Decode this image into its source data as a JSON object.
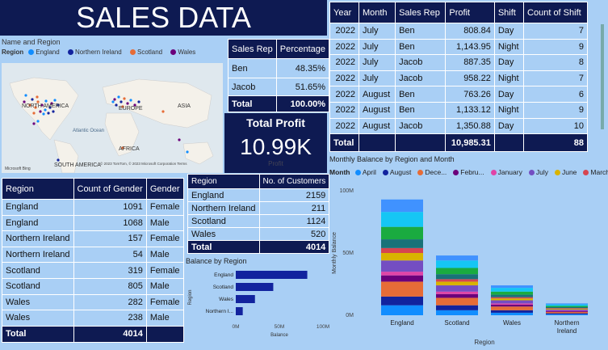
{
  "title": "SALES DATA",
  "map": {
    "caption": "Name and Region",
    "legend_label": "Region",
    "legend": [
      {
        "name": "England",
        "color": "#118dff"
      },
      {
        "name": "Northern Ireland",
        "color": "#12239e"
      },
      {
        "name": "Scotland",
        "color": "#e66c37"
      },
      {
        "name": "Wales",
        "color": "#6b007b"
      }
    ],
    "labels": {
      "north_america": "NORTH AMERICA",
      "europe": "EUROPE",
      "asia": "ASIA",
      "africa": "AFRICA",
      "south_america": "SOUTH AMERICA",
      "australia": "AUSTRALIA",
      "atlantic": "Atlantic Ocean"
    },
    "brand": "Microsoft Bing",
    "copyright": "© 2023 TomTom, © 2023 Microsoft Corporation Terms"
  },
  "rep_table": {
    "headers": [
      "Sales Rep",
      "Percentage"
    ],
    "rows": [
      [
        "Ben",
        "48.35%"
      ],
      [
        "Jacob",
        "51.65%"
      ]
    ],
    "total": [
      "Total",
      "100.00%"
    ]
  },
  "kpi": {
    "title": "Total Profit",
    "value": "10.99K",
    "label": "Profit"
  },
  "shift_table": {
    "headers": [
      "Year",
      "Month",
      "Sales Rep",
      "Profit",
      "Shift",
      "Count of Shift"
    ],
    "rows": [
      [
        "2022",
        "July",
        "Ben",
        "808.84",
        "Day",
        "7"
      ],
      [
        "2022",
        "July",
        "Ben",
        "1,143.95",
        "Night",
        "9"
      ],
      [
        "2022",
        "July",
        "Jacob",
        "887.35",
        "Day",
        "8"
      ],
      [
        "2022",
        "July",
        "Jacob",
        "958.22",
        "Night",
        "7"
      ],
      [
        "2022",
        "August",
        "Ben",
        "763.26",
        "Day",
        "6"
      ],
      [
        "2022",
        "August",
        "Ben",
        "1,133.12",
        "Night",
        "9"
      ],
      [
        "2022",
        "August",
        "Jacob",
        "1,350.88",
        "Day",
        "10"
      ]
    ],
    "total": [
      "Total",
      "",
      "",
      "10,985.31",
      "",
      "88"
    ]
  },
  "gender_table": {
    "headers": [
      "Region",
      "Count of Gender",
      "Gender"
    ],
    "rows": [
      [
        "England",
        "1091",
        "Female"
      ],
      [
        "England",
        "1068",
        "Male"
      ],
      [
        "Northern Ireland",
        "157",
        "Female"
      ],
      [
        "Northern Ireland",
        "54",
        "Male"
      ],
      [
        "Scotland",
        "319",
        "Female"
      ],
      [
        "Scotland",
        "805",
        "Male"
      ],
      [
        "Wales",
        "282",
        "Female"
      ],
      [
        "Wales",
        "238",
        "Male"
      ]
    ],
    "total": [
      "Total",
      "4014",
      ""
    ]
  },
  "customers_table": {
    "headers": [
      "Region",
      "No. of Customers"
    ],
    "rows": [
      [
        "England",
        "2159"
      ],
      [
        "Northern Ireland",
        "211"
      ],
      [
        "Scotland",
        "1124"
      ],
      [
        "Wales",
        "520"
      ]
    ],
    "total": [
      "Total",
      "4014"
    ]
  },
  "chart_data": [
    {
      "type": "bar",
      "orientation": "horizontal",
      "title": "Balance by Region",
      "xlabel": "Balance",
      "ylabel": "Region",
      "categories": [
        "England",
        "Scotland",
        "Wales",
        "Northern I..."
      ],
      "values": [
        82,
        43,
        22,
        8
      ],
      "xlim": [
        0,
        100
      ],
      "xticks": [
        "0M",
        "50M",
        "100M"
      ],
      "color": "#12239e"
    },
    {
      "type": "bar",
      "stacked": true,
      "title": "Monthly Balance by Region and Month",
      "xlabel": "Region",
      "ylabel": "Monthly Balance",
      "legend_label": "Month",
      "categories": [
        "England",
        "Scotland",
        "Wales",
        "Northern Ireland"
      ],
      "ylim": [
        0,
        100
      ],
      "yticks": [
        "0M",
        "50M",
        "100M"
      ],
      "series": [
        {
          "name": "April",
          "color": "#118dff",
          "values": [
            8,
            4,
            2,
            0.8
          ]
        },
        {
          "name": "August",
          "color": "#12239e",
          "values": [
            7,
            4,
            2,
            0.8
          ]
        },
        {
          "name": "Dece...",
          "color": "#e66c37",
          "values": [
            12,
            6,
            3,
            1
          ]
        },
        {
          "name": "Febru...",
          "color": "#6b007b",
          "values": [
            5,
            3,
            1.5,
            0.6
          ]
        },
        {
          "name": "January",
          "color": "#e044a7",
          "values": [
            3,
            2,
            1,
            0.4
          ]
        },
        {
          "name": "July",
          "color": "#744ec2",
          "values": [
            9,
            5,
            2.5,
            1
          ]
        },
        {
          "name": "June",
          "color": "#d9b300",
          "values": [
            6,
            3,
            1.5,
            0.6
          ]
        },
        {
          "name": "March",
          "color": "#d64550",
          "values": [
            4,
            2,
            1,
            0.5
          ]
        },
        {
          "name": "",
          "color": "#197278",
          "values": [
            7,
            4,
            2,
            0.8
          ]
        },
        {
          "name": "",
          "color": "#1aab40",
          "values": [
            10,
            5,
            2.5,
            1
          ]
        },
        {
          "name": "",
          "color": "#15c6f4",
          "values": [
            12,
            6,
            3,
            1.2
          ]
        },
        {
          "name": "",
          "color": "#4092ff",
          "values": [
            10,
            4,
            2,
            0.8
          ]
        }
      ]
    }
  ]
}
